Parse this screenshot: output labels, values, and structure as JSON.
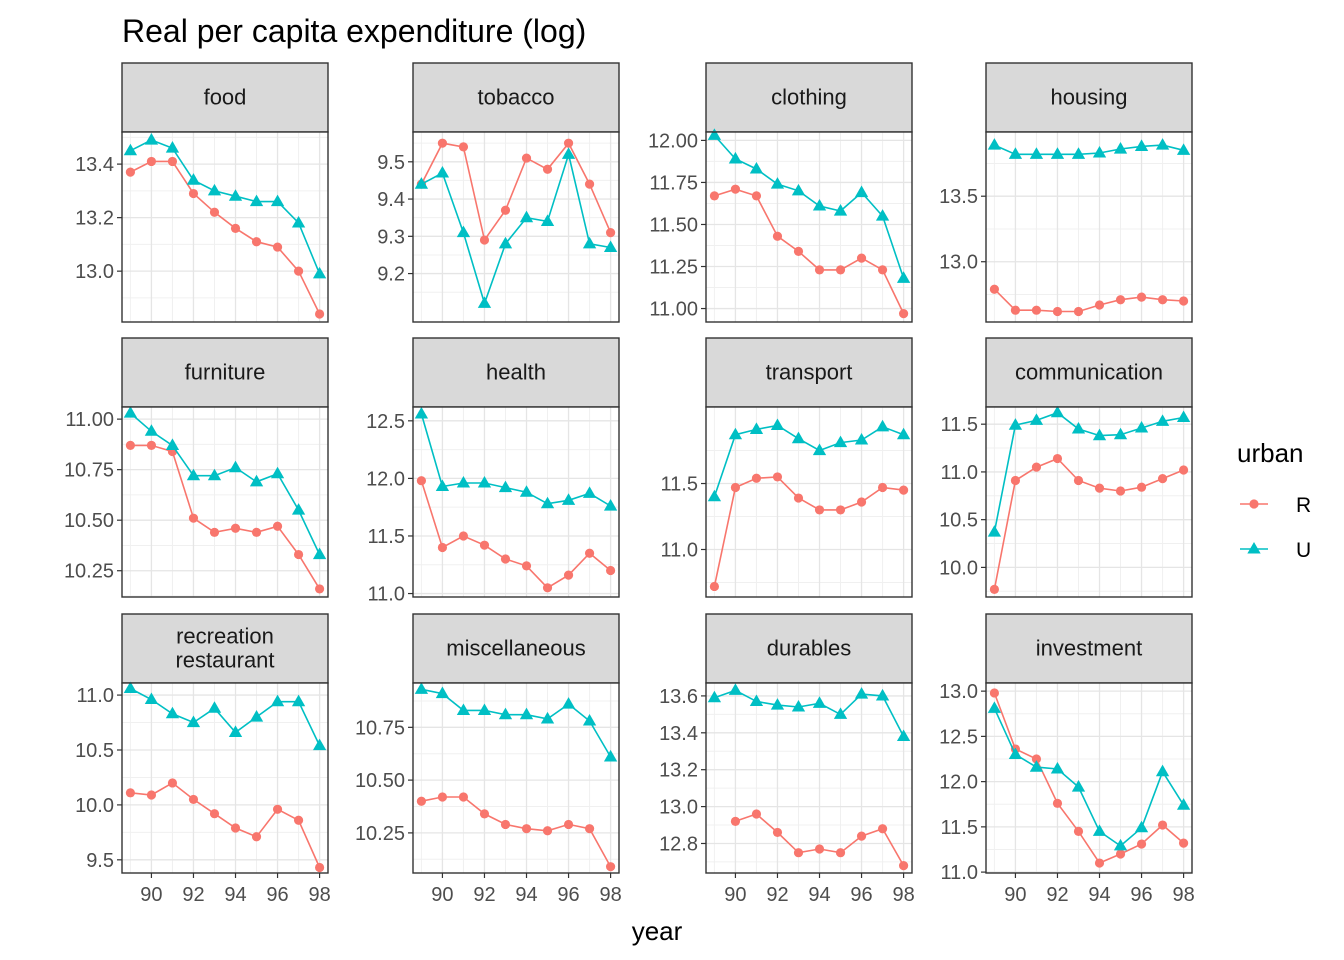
{
  "chart_data": {
    "type": "line",
    "title": "Real per capita expenditure (log)",
    "xlabel": "year",
    "ylabel": "",
    "x": [
      89,
      90,
      91,
      92,
      93,
      94,
      95,
      96,
      97,
      98
    ],
    "x_ticks": [
      90,
      92,
      94,
      96,
      98
    ],
    "x_tick_labels": [
      "90",
      "92",
      "94",
      "96",
      "98"
    ],
    "xlim": [
      88.6,
      98.4
    ],
    "grid": true,
    "legend": {
      "title": "urban",
      "position": "right",
      "entries": [
        {
          "label": "R",
          "color": "#F8766D",
          "marker": "circle"
        },
        {
          "label": "U",
          "color": "#00BFC4",
          "marker": "triangle"
        }
      ]
    },
    "panels": [
      {
        "label": "food",
        "ylim": [
          12.81,
          13.52
        ],
        "y_ticks": [
          13.0,
          13.2,
          13.4
        ],
        "y_tick_labels": [
          "13.0",
          "13.2",
          "13.4"
        ],
        "series": [
          {
            "name": "R",
            "values": [
              13.37,
              13.41,
              13.41,
              13.29,
              13.22,
              13.16,
              13.11,
              13.09,
              13.0,
              12.84
            ]
          },
          {
            "name": "U",
            "values": [
              13.45,
              13.49,
              13.46,
              13.34,
              13.3,
              13.28,
              13.26,
              13.26,
              13.18,
              12.99
            ]
          }
        ]
      },
      {
        "label": "tobacco",
        "ylim": [
          9.07,
          9.58
        ],
        "y_ticks": [
          9.2,
          9.3,
          9.4,
          9.5
        ],
        "y_tick_labels": [
          "9.2",
          "9.3",
          "9.4",
          "9.5"
        ],
        "series": [
          {
            "name": "R",
            "values": [
              9.44,
              9.55,
              9.54,
              9.29,
              9.37,
              9.51,
              9.48,
              9.55,
              9.44,
              9.31
            ]
          },
          {
            "name": "U",
            "values": [
              9.44,
              9.47,
              9.31,
              9.12,
              9.28,
              9.35,
              9.34,
              9.52,
              9.28,
              9.27
            ]
          }
        ]
      },
      {
        "label": "clothing",
        "ylim": [
          10.92,
          12.05
        ],
        "y_ticks": [
          11.0,
          11.25,
          11.5,
          11.75,
          12.0
        ],
        "y_tick_labels": [
          "11.00",
          "11.25",
          "11.50",
          "11.75",
          "12.00"
        ],
        "series": [
          {
            "name": "R",
            "values": [
              11.67,
              11.71,
              11.67,
              11.43,
              11.34,
              11.23,
              11.23,
              11.3,
              11.23,
              10.97
            ]
          },
          {
            "name": "U",
            "values": [
              12.03,
              11.89,
              11.83,
              11.74,
              11.7,
              11.61,
              11.58,
              11.69,
              11.55,
              11.18
            ]
          }
        ]
      },
      {
        "label": "housing",
        "ylim": [
          12.54,
          13.99
        ],
        "y_ticks": [
          13.0,
          13.5
        ],
        "y_tick_labels": [
          "13.0",
          "13.5"
        ],
        "series": [
          {
            "name": "R",
            "values": [
              12.79,
              12.63,
              12.63,
              12.62,
              12.62,
              12.67,
              12.71,
              12.73,
              12.71,
              12.7
            ]
          },
          {
            "name": "U",
            "values": [
              13.89,
              13.82,
              13.82,
              13.82,
              13.82,
              13.83,
              13.86,
              13.88,
              13.89,
              13.85
            ]
          }
        ]
      },
      {
        "label": "furniture",
        "ylim": [
          10.12,
          11.06
        ],
        "y_ticks": [
          10.25,
          10.5,
          10.75,
          11.0
        ],
        "y_tick_labels": [
          "10.25",
          "10.50",
          "10.75",
          "11.00"
        ],
        "series": [
          {
            "name": "R",
            "values": [
              10.87,
              10.87,
              10.84,
              10.51,
              10.44,
              10.46,
              10.44,
              10.47,
              10.33,
              10.16
            ]
          },
          {
            "name": "U",
            "values": [
              11.03,
              10.94,
              10.87,
              10.72,
              10.72,
              10.76,
              10.69,
              10.73,
              10.55,
              10.33
            ]
          }
        ]
      },
      {
        "label": "health",
        "ylim": [
          10.97,
          12.62
        ],
        "y_ticks": [
          11.0,
          11.5,
          12.0,
          12.5
        ],
        "y_tick_labels": [
          "11.0",
          "11.5",
          "12.0",
          "12.5"
        ],
        "series": [
          {
            "name": "R",
            "values": [
              11.98,
              11.4,
              11.5,
              11.42,
              11.3,
              11.24,
              11.05,
              11.16,
              11.35,
              11.2
            ]
          },
          {
            "name": "U",
            "values": [
              12.56,
              11.93,
              11.96,
              11.96,
              11.92,
              11.88,
              11.78,
              11.81,
              11.87,
              11.76
            ]
          }
        ]
      },
      {
        "label": "transport",
        "ylim": [
          10.64,
          12.08
        ],
        "y_ticks": [
          11.0,
          11.5
        ],
        "y_tick_labels": [
          "11.0",
          "11.5"
        ],
        "series": [
          {
            "name": "R",
            "values": [
              10.72,
              11.47,
              11.54,
              11.55,
              11.39,
              11.3,
              11.3,
              11.36,
              11.47,
              11.45
            ]
          },
          {
            "name": "U",
            "values": [
              11.4,
              11.87,
              11.91,
              11.94,
              11.84,
              11.75,
              11.81,
              11.83,
              11.93,
              11.87
            ]
          }
        ]
      },
      {
        "label": "communication",
        "ylim": [
          9.69,
          11.68
        ],
        "y_ticks": [
          10.0,
          10.5,
          11.0,
          11.5
        ],
        "y_tick_labels": [
          "10.0",
          "10.5",
          "11.0",
          "11.5"
        ],
        "series": [
          {
            "name": "R",
            "values": [
              9.77,
              10.91,
              11.05,
              11.14,
              10.91,
              10.83,
              10.8,
              10.84,
              10.93,
              11.02
            ]
          },
          {
            "name": "U",
            "values": [
              10.37,
              11.49,
              11.54,
              11.62,
              11.45,
              11.38,
              11.39,
              11.46,
              11.53,
              11.57
            ]
          }
        ]
      },
      {
        "label": "recreation\nrestaurant",
        "ylim": [
          9.38,
          11.11
        ],
        "y_ticks": [
          9.5,
          10.0,
          10.5,
          11.0
        ],
        "y_tick_labels": [
          "9.5",
          "10.0",
          "10.5",
          "11.0"
        ],
        "series": [
          {
            "name": "R",
            "values": [
              10.11,
              10.09,
              10.2,
              10.05,
              9.92,
              9.79,
              9.71,
              9.96,
              9.86,
              9.43
            ]
          },
          {
            "name": "U",
            "values": [
              11.06,
              10.96,
              10.83,
              10.75,
              10.88,
              10.66,
              10.8,
              10.94,
              10.94,
              10.54
            ]
          }
        ]
      },
      {
        "label": "miscellaneous",
        "ylim": [
          10.06,
          10.96
        ],
        "y_ticks": [
          10.25,
          10.5,
          10.75
        ],
        "y_tick_labels": [
          "10.25",
          "10.50",
          "10.75"
        ],
        "series": [
          {
            "name": "R",
            "values": [
              10.4,
              10.42,
              10.42,
              10.34,
              10.29,
              10.27,
              10.26,
              10.29,
              10.27,
              10.09
            ]
          },
          {
            "name": "U",
            "values": [
              10.93,
              10.91,
              10.83,
              10.83,
              10.81,
              10.81,
              10.79,
              10.86,
              10.78,
              10.61
            ]
          }
        ]
      },
      {
        "label": "durables",
        "ylim": [
          12.64,
          13.67
        ],
        "y_ticks": [
          12.8,
          13.0,
          13.2,
          13.4,
          13.6
        ],
        "y_tick_labels": [
          "12.8",
          "13.0",
          "13.2",
          "13.4",
          "13.6"
        ],
        "series": [
          {
            "name": "R",
            "values": [
              null,
              12.92,
              12.96,
              12.86,
              12.75,
              12.77,
              12.75,
              12.84,
              12.88,
              12.68
            ]
          },
          {
            "name": "U",
            "values": [
              13.59,
              13.63,
              13.57,
              13.55,
              13.54,
              13.56,
              13.5,
              13.61,
              13.6,
              13.38
            ]
          }
        ]
      },
      {
        "label": "investment",
        "ylim": [
          10.99,
          13.09
        ],
        "y_ticks": [
          11.0,
          11.5,
          12.0,
          12.5,
          13.0
        ],
        "y_tick_labels": [
          "11.0",
          "11.5",
          "12.0",
          "12.5",
          "13.0"
        ],
        "series": [
          {
            "name": "R",
            "values": [
              12.98,
              12.36,
              12.25,
              11.76,
              11.45,
              11.1,
              11.2,
              11.31,
              11.52,
              11.32
            ]
          },
          {
            "name": "U",
            "values": [
              12.81,
              12.3,
              12.16,
              12.14,
              11.94,
              11.45,
              11.29,
              11.49,
              12.11,
              11.74
            ]
          }
        ]
      }
    ]
  }
}
